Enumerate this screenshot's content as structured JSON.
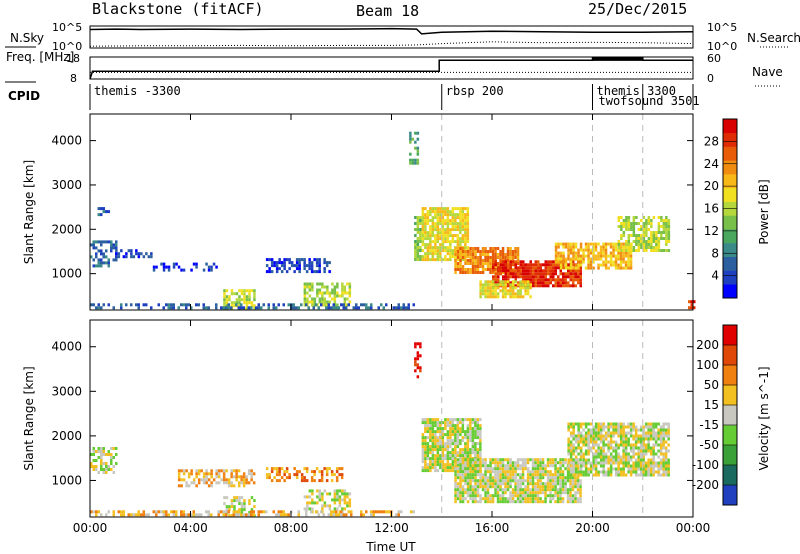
{
  "header": {
    "radar_name": "Blackstone (fitACF)",
    "beam": "Beam 18",
    "date": "25/Dec/2015"
  },
  "chart_data": [
    {
      "type": "line",
      "panel": "noise",
      "left_label": "N.Sky",
      "right_label": "N.Search",
      "yticks_left": [
        "10^5",
        "10^0"
      ],
      "yticks_right": [
        "10^5",
        "10^0"
      ],
      "series": [
        {
          "name": "N.Sky",
          "style": "solid",
          "x": [
            0,
            1,
            2,
            4,
            6,
            8,
            10,
            12,
            13,
            13.2,
            14,
            16,
            18,
            20,
            22,
            24
          ],
          "y": [
            4.2,
            4.3,
            4.2,
            4.3,
            4.2,
            4.3,
            4.3,
            4.4,
            4.3,
            3.2,
            3.6,
            3.8,
            3.7,
            3.6,
            3.6,
            3.7
          ]
        },
        {
          "name": "N.Search",
          "style": "dotted",
          "x": [
            0,
            2,
            4,
            6,
            8,
            10,
            12,
            13,
            14,
            16,
            18,
            20,
            22,
            24
          ],
          "y": [
            0.4,
            0.5,
            0.5,
            0.6,
            0.5,
            0.6,
            0.6,
            0.7,
            1.0,
            1.4,
            1.2,
            1.3,
            1.2,
            1.0
          ]
        }
      ]
    },
    {
      "type": "line",
      "panel": "frequency",
      "left_label": "Freq. [MHz]",
      "right_label": "Nave",
      "yticks_left": [
        "18",
        "8"
      ],
      "yticks_right": [
        "60",
        "0"
      ],
      "series": [
        {
          "name": "Freq",
          "style": "solid",
          "x": [
            0,
            0.1,
            13.9,
            13.9,
            20,
            20,
            22,
            22,
            24
          ],
          "y": [
            8,
            11.5,
            11.5,
            16.5,
            16.5,
            17.5,
            17.5,
            16.5,
            16.5
          ]
        },
        {
          "name": "Nave",
          "style": "dotted",
          "x": [
            0,
            24
          ],
          "y": [
            11,
            11
          ]
        }
      ]
    },
    {
      "type": "table",
      "panel": "cpid",
      "label": "CPID",
      "entries": [
        {
          "start": 0,
          "text": "themis -3300"
        },
        {
          "start": 14,
          "text": "rbsp 200"
        },
        {
          "start": 20,
          "text": "themis 3300"
        },
        {
          "start": 20,
          "text": "twofsound 3501"
        }
      ]
    },
    {
      "type": "heatmap",
      "panel": "power",
      "ylabel": "Slant Range [km]",
      "ylim": [
        180,
        4600
      ],
      "yticks": [
        1000,
        2000,
        3000,
        4000
      ],
      "colorbar_label": "Power [dB]",
      "colorbar_ticks": [
        "28",
        "24",
        "20",
        "16",
        "12",
        "8",
        "4"
      ],
      "colors": [
        "#0000ff",
        "#1e3fbf",
        "#2b5f9f",
        "#3a8a8a",
        "#4aa85e",
        "#78c048",
        "#b4d83c",
        "#f0e020",
        "#f8b818",
        "#f08c10",
        "#e85c08",
        "#e02c04",
        "#d80000"
      ],
      "regions": [
        {
          "x": [
            0.0,
            1.0
          ],
          "y": [
            1150,
            1750
          ],
          "level": 2,
          "density": 0.5
        },
        {
          "x": [
            0.2,
            0.7
          ],
          "y": [
            2300,
            2500
          ],
          "level": 2,
          "density": 0.45
        },
        {
          "x": [
            1.0,
            2.5
          ],
          "y": [
            1350,
            1550
          ],
          "level": 1,
          "density": 0.5
        },
        {
          "x": [
            2.5,
            5.0
          ],
          "y": [
            1100,
            1250
          ],
          "level": 1,
          "density": 0.45
        },
        {
          "x": [
            7.0,
            9.5
          ],
          "y": [
            1050,
            1350
          ],
          "level": 1,
          "density": 0.5
        },
        {
          "x": [
            5.3,
            6.5
          ],
          "y": [
            200,
            650
          ],
          "level": 6,
          "density": 0.7
        },
        {
          "x": [
            8.5,
            10.3
          ],
          "y": [
            300,
            800
          ],
          "level": 6,
          "density": 0.6
        },
        {
          "x": [
            0.0,
            13.0
          ],
          "y": [
            200,
            330
          ],
          "level": 2,
          "density": 0.45
        },
        {
          "x": [
            12.9,
            13.1
          ],
          "y": [
            1300,
            2300
          ],
          "level": 5,
          "density": 0.8
        },
        {
          "x": [
            12.7,
            13.0
          ],
          "y": [
            3500,
            4200
          ],
          "level": 4,
          "density": 0.5
        },
        {
          "x": [
            13.2,
            15.0
          ],
          "y": [
            1300,
            2500
          ],
          "level": 7,
          "density": 0.85
        },
        {
          "x": [
            14.5,
            17.0
          ],
          "y": [
            1000,
            1600
          ],
          "level": 9,
          "density": 0.85
        },
        {
          "x": [
            16.0,
            19.5
          ],
          "y": [
            700,
            1300
          ],
          "level": 11,
          "density": 0.9
        },
        {
          "x": [
            15.5,
            17.5
          ],
          "y": [
            450,
            850
          ],
          "level": 7,
          "density": 0.8
        },
        {
          "x": [
            18.5,
            21.5
          ],
          "y": [
            1100,
            1700
          ],
          "level": 8,
          "density": 0.8
        },
        {
          "x": [
            21.0,
            23.0
          ],
          "y": [
            1500,
            2300
          ],
          "level": 6,
          "density": 0.7
        },
        {
          "x": [
            23.8,
            24.0
          ],
          "y": [
            200,
            400
          ],
          "level": 11,
          "density": 0.7
        }
      ]
    },
    {
      "type": "heatmap",
      "panel": "velocity",
      "xlabel": "Time UT",
      "xticks": [
        "00:00",
        "04:00",
        "08:00",
        "12:00",
        "16:00",
        "20:00",
        "00:00"
      ],
      "ylabel": "Slant Range [km]",
      "ylim": [
        180,
        4600
      ],
      "yticks": [
        1000,
        2000,
        3000,
        4000
      ],
      "colorbar_label": "Velocity [m s^-1]",
      "colorbar_ticks": [
        "200",
        "100",
        "50",
        "15",
        "-15",
        "-50",
        "-100",
        "-200"
      ],
      "colors": [
        "#2040c0",
        "#1a6a60",
        "#3aa038",
        "#66cc33",
        "#c8c8c0",
        "#f2c020",
        "#f08010",
        "#e04808",
        "#e00000"
      ],
      "regions": [
        {
          "x": [
            0.0,
            1.0
          ],
          "y": [
            1150,
            1750
          ],
          "level": 4,
          "density": 0.5
        },
        {
          "x": [
            3.5,
            6.5
          ],
          "y": [
            900,
            1250
          ],
          "level": 5,
          "density": 0.6
        },
        {
          "x": [
            7.0,
            10.0
          ],
          "y": [
            1000,
            1300
          ],
          "level": 6,
          "density": 0.5
        },
        {
          "x": [
            5.3,
            6.5
          ],
          "y": [
            200,
            650
          ],
          "level": 4,
          "density": 0.5
        },
        {
          "x": [
            8.5,
            10.3
          ],
          "y": [
            300,
            800
          ],
          "level": 4,
          "density": 0.5
        },
        {
          "x": [
            0.0,
            13.0
          ],
          "y": [
            200,
            330
          ],
          "level": 5,
          "density": 0.5
        },
        {
          "x": [
            12.9,
            13.1
          ],
          "y": [
            3300,
            4100
          ],
          "level": 8,
          "density": 0.6
        },
        {
          "x": [
            13.2,
            15.5
          ],
          "y": [
            1200,
            2400
          ],
          "level": 4,
          "density": 0.85
        },
        {
          "x": [
            14.5,
            19.5
          ],
          "y": [
            500,
            1500
          ],
          "level": 4,
          "density": 0.85
        },
        {
          "x": [
            19.0,
            23.0
          ],
          "y": [
            1100,
            2300
          ],
          "level": 4,
          "density": 0.8
        }
      ]
    }
  ]
}
